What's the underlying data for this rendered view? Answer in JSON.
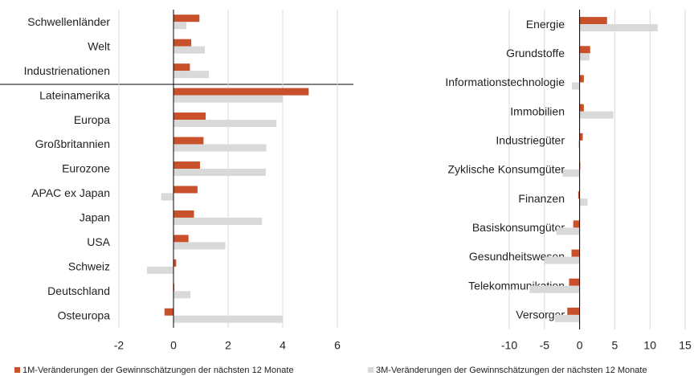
{
  "chart_data": [
    {
      "type": "bar",
      "orientation": "horizontal",
      "categories": [
        "Schwellenländer",
        "Welt",
        "Industrienationen",
        "Lateinamerika",
        "Europa",
        "Großbritannien",
        "Eurozone",
        "APAC ex Japan",
        "Japan",
        "USA",
        "Schweiz",
        "Deutschland",
        "Osteuropa"
      ],
      "series": [
        {
          "name": "1M-Veränderungen der Gewinnschätzungen der nächsten 12 Monate",
          "color": "#c8502a",
          "values": [
            0.95,
            0.65,
            0.6,
            4.95,
            1.18,
            1.1,
            0.97,
            0.88,
            0.75,
            0.55,
            0.1,
            0.03,
            -0.33
          ]
        },
        {
          "name": "3M-Veränderungen der Gewinnschätzungen der nächsten 12 Monate",
          "color": "#d9d9d9",
          "values": [
            0.47,
            1.15,
            1.3,
            4.0,
            3.77,
            3.4,
            3.38,
            -0.45,
            3.24,
            1.9,
            -0.97,
            0.62,
            4.0
          ]
        }
      ],
      "xlim": [
        -2,
        6
      ],
      "xticks": [
        -2,
        0,
        2,
        4,
        6
      ],
      "grid": true
    },
    {
      "type": "bar",
      "orientation": "horizontal",
      "categories": [
        "Energie",
        "Grundstoffe",
        "Informationstechnologie",
        "Immobilien",
        "Industriegüter",
        "Zyklische Konsumgüter",
        "Finanzen",
        "Basiskonsumgüter",
        "Gesundheitswesen",
        "Telekommunikation",
        "Versorger"
      ],
      "series": [
        {
          "color": "#c8502a",
          "values": [
            3.9,
            1.5,
            0.6,
            0.6,
            0.45,
            0.1,
            -0.2,
            -0.9,
            -1.15,
            -1.5,
            -1.75
          ]
        },
        {
          "color": "#d9d9d9",
          "values": [
            11.1,
            1.4,
            -1.1,
            4.8,
            -0.2,
            -2.4,
            1.15,
            -3.3,
            -5.0,
            -7.1,
            -3.5
          ]
        }
      ],
      "xlim": [
        -10,
        15
      ],
      "xticks": [
        -10,
        -5,
        0,
        5,
        10,
        15
      ],
      "grid": true
    }
  ]
}
